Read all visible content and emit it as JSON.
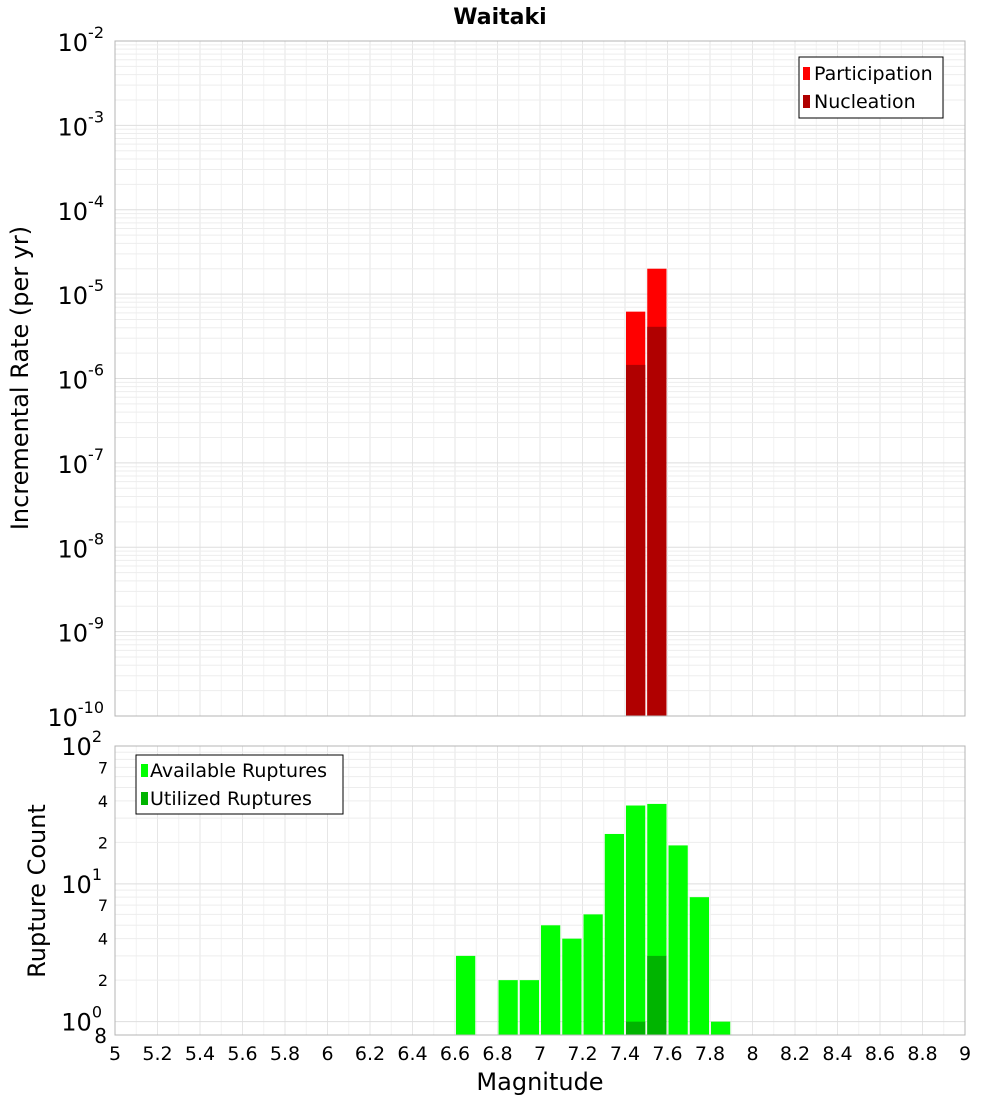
{
  "chart_data": [
    {
      "type": "bar",
      "title": "Waitaki",
      "ylabel": "Incremental Rate (per yr)",
      "yscale": "log",
      "ylim": [
        1e-10,
        0.01
      ],
      "y_tick_labels": [
        {
          "base": "10",
          "exp": "-10"
        },
        {
          "base": "10",
          "exp": "-9"
        },
        {
          "base": "10",
          "exp": "-8"
        },
        {
          "base": "10",
          "exp": "-7"
        },
        {
          "base": "10",
          "exp": "-6"
        },
        {
          "base": "10",
          "exp": "-5"
        },
        {
          "base": "10",
          "exp": "-4"
        },
        {
          "base": "10",
          "exp": "-3"
        },
        {
          "base": "10",
          "exp": "-2"
        }
      ],
      "xlim": [
        5,
        9
      ],
      "bar_width": 0.1,
      "grid": true,
      "legend_position": "top-right",
      "series": [
        {
          "name": "Participation",
          "color": "#ff0000",
          "x": [
            7.45,
            7.55
          ],
          "values": [
            6.2e-06,
            2e-05
          ]
        },
        {
          "name": "Nucleation",
          "color": "#b00000",
          "x": [
            7.45,
            7.55
          ],
          "values": [
            1.45e-06,
            4.1e-06
          ]
        }
      ]
    },
    {
      "type": "bar",
      "ylabel": "Rupture Count",
      "xlabel": "Magnitude",
      "yscale": "log",
      "ylim": [
        0.8,
        100
      ],
      "y_major_ticks": [
        {
          "base": "10",
          "exp": "0"
        },
        {
          "base": "10",
          "exp": "1"
        },
        {
          "base": "10",
          "exp": "2"
        }
      ],
      "y_minor_ticks": [
        "8",
        "2",
        "4",
        "7",
        "2",
        "4",
        "7"
      ],
      "x_ticks": [
        "5",
        "5.2",
        "5.4",
        "5.6",
        "5.8",
        "6",
        "6.2",
        "6.4",
        "6.6",
        "6.8",
        "7",
        "7.2",
        "7.4",
        "7.6",
        "7.8",
        "8",
        "8.2",
        "8.4",
        "8.6",
        "8.8",
        "9"
      ],
      "xlim": [
        5,
        9
      ],
      "bar_width": 0.1,
      "grid": true,
      "legend_position": "top-left",
      "series": [
        {
          "name": "Available Ruptures",
          "color": "#00ff00",
          "x": [
            6.65,
            6.85,
            6.95,
            7.05,
            7.15,
            7.25,
            7.35,
            7.45,
            7.55,
            7.65,
            7.75,
            7.85
          ],
          "values": [
            3,
            2,
            2,
            5,
            4,
            6,
            23,
            37,
            38,
            19,
            8,
            1
          ]
        },
        {
          "name": "Utilized Ruptures",
          "color": "#00b400",
          "x": [
            7.45,
            7.55
          ],
          "values": [
            1,
            3
          ]
        }
      ]
    }
  ]
}
